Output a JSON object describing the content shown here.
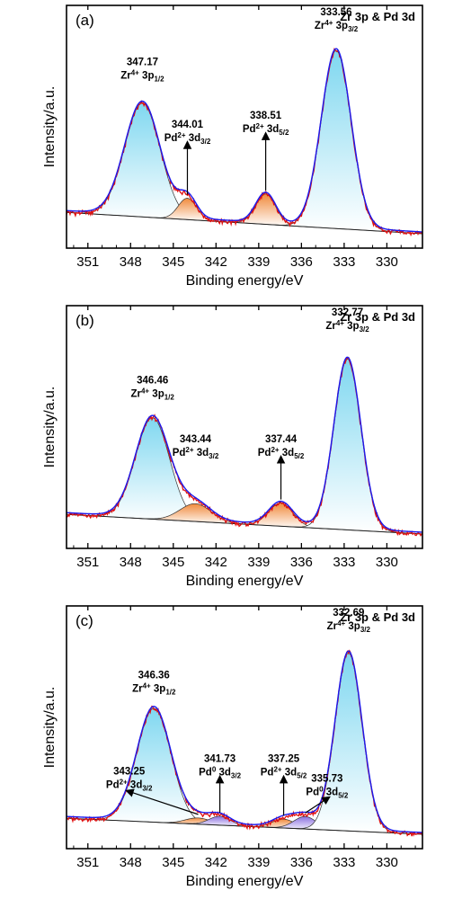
{
  "colors": {
    "envelope": "#1a1aee",
    "measured": "#e01010",
    "baseline": "#222222",
    "zr_fill_top": "#7ed7f0",
    "zr_fill_bottom": "#ffffff",
    "pd2_fill_top": "#f08a3c",
    "pd2_fill_bottom": "#ffffff",
    "pd0_fill_top": "#8a6fe0",
    "pd0_fill_bottom": "#ffffff"
  },
  "chart_data": [
    {
      "type": "line",
      "panel_label": "(a)",
      "title": "Zr 3p & Pd 3d",
      "xlabel": "Binding energy/eV",
      "ylabel": "Intensity/a.u.",
      "xlim": [
        352.5,
        327.5
      ],
      "x_reversed": true,
      "x_ticks": [
        351,
        348,
        345,
        342,
        339,
        336,
        333,
        330
      ],
      "grid": false,
      "legend": "none",
      "baseline": {
        "start": 0.12,
        "end": 0.0
      },
      "peaks": [
        {
          "center": 347.17,
          "height": 0.64,
          "width": 1.25,
          "species": "Zr4+",
          "orbital": "3p",
          "sub": "1/2",
          "fill": "zr",
          "label_pos": [
            347.17,
            0.87
          ]
        },
        {
          "center": 344.01,
          "height": 0.12,
          "width": 0.65,
          "species": "Pd2+",
          "orbital": "3d",
          "sub": "3/2",
          "fill": "pd2",
          "label_pos": [
            344.01,
            0.52
          ],
          "arrow": true
        },
        {
          "center": 338.51,
          "height": 0.17,
          "width": 0.7,
          "species": "Pd2+",
          "orbital": "3d",
          "sub": "5/2",
          "fill": "pd2",
          "label_pos": [
            338.51,
            0.57
          ],
          "arrow": true
        },
        {
          "center": 333.56,
          "height": 1.0,
          "width": 1.05,
          "species": "Zr4+",
          "orbital": "3p",
          "sub": "3/2",
          "fill": "zr",
          "label_pos": [
            333.56,
            1.15
          ]
        }
      ]
    },
    {
      "type": "line",
      "panel_label": "(b)",
      "title": "Zr 3p & Pd 3d",
      "xlabel": "Binding energy/eV",
      "ylabel": "Intensity/a.u.",
      "xlim": [
        352.5,
        327.5
      ],
      "x_reversed": true,
      "x_ticks": [
        351,
        348,
        345,
        342,
        339,
        336,
        333,
        330
      ],
      "grid": false,
      "legend": "none",
      "baseline": {
        "start": 0.11,
        "end": 0.0
      },
      "peaks": [
        {
          "center": 346.46,
          "height": 0.57,
          "width": 1.2,
          "species": "Zr4+",
          "orbital": "3p",
          "sub": "1/2",
          "fill": "zr",
          "label_pos": [
            346.46,
            0.77
          ]
        },
        {
          "center": 343.44,
          "height": 0.1,
          "width": 1.1,
          "species": "Pd2+",
          "orbital": "3d",
          "sub": "3/2",
          "fill": "pd2",
          "label_pos": [
            343.44,
            0.44
          ]
        },
        {
          "center": 337.44,
          "height": 0.13,
          "width": 0.85,
          "species": "Pd2+",
          "orbital": "3d",
          "sub": "5/2",
          "fill": "pd2",
          "label_pos": [
            337.44,
            0.44
          ],
          "arrow": true
        },
        {
          "center": 332.77,
          "height": 0.96,
          "width": 0.95,
          "species": "Zr4+",
          "orbital": "3p",
          "sub": "3/2",
          "fill": "zr",
          "label_pos": [
            332.77,
            1.15
          ]
        }
      ]
    },
    {
      "type": "line",
      "panel_label": "(c)",
      "title": "Zr 3p & Pd 3d",
      "xlabel": "Binding energy/eV",
      "ylabel": "Intensity/a.u.",
      "xlim": [
        352.5,
        327.5
      ],
      "x_reversed": true,
      "x_ticks": [
        351,
        348,
        345,
        342,
        339,
        336,
        333,
        330
      ],
      "grid": false,
      "legend": "none",
      "baseline": {
        "start": 0.09,
        "end": 0.0
      },
      "peaks": [
        {
          "center": 346.36,
          "height": 0.64,
          "width": 1.2,
          "species": "Zr4+",
          "orbital": "3p",
          "sub": "1/2",
          "fill": "zr",
          "label_pos": [
            346.36,
            0.8
          ]
        },
        {
          "center": 343.25,
          "height": 0.035,
          "width": 0.9,
          "species": "Pd2+",
          "orbital": "3d",
          "sub": "3/2",
          "fill": "pd2",
          "label_pos": [
            348.1,
            0.26
          ],
          "arrow": true
        },
        {
          "center": 341.73,
          "height": 0.05,
          "width": 0.75,
          "species": "Pd0",
          "orbital": "3d",
          "sub": "3/2",
          "fill": "pd0",
          "label_pos": [
            341.73,
            0.33
          ],
          "arrow": true
        },
        {
          "center": 337.25,
          "height": 0.05,
          "width": 0.8,
          "species": "Pd2+",
          "orbital": "3d",
          "sub": "5/2",
          "fill": "pd2",
          "label_pos": [
            337.25,
            0.33
          ],
          "arrow": true
        },
        {
          "center": 335.73,
          "height": 0.07,
          "width": 0.8,
          "species": "Pd0",
          "orbital": "3d",
          "sub": "5/2",
          "fill": "pd0",
          "label_pos": [
            334.2,
            0.22
          ],
          "arrow": true
        },
        {
          "center": 332.69,
          "height": 1.0,
          "width": 0.95,
          "species": "Zr4+",
          "orbital": "3p",
          "sub": "3/2",
          "fill": "zr",
          "label_pos": [
            332.69,
            1.15
          ]
        }
      ]
    }
  ]
}
